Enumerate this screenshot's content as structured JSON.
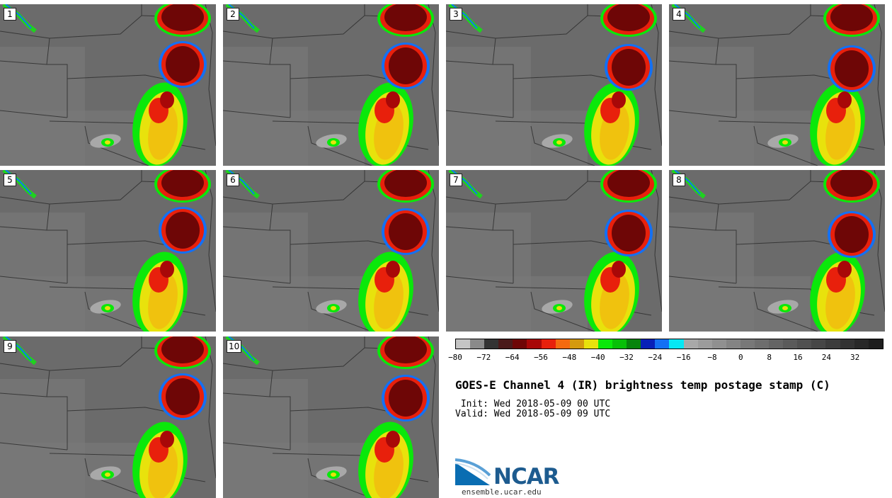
{
  "panels": [
    "1",
    "2",
    "3",
    "4",
    "5",
    "6",
    "7",
    "8",
    "9",
    "10"
  ],
  "colorbar": {
    "colors": [
      "#c4c4c4",
      "#8a8a8a",
      "#333333",
      "#4a1a1a",
      "#6e0606",
      "#a80808",
      "#e8200c",
      "#f46a10",
      "#d49a0e",
      "#e8e20c",
      "#0ae80a",
      "#08c008",
      "#08840c",
      "#0820b8",
      "#1470f4",
      "#06e8f4",
      "#a8a8a8",
      "#9c9c9c",
      "#909090",
      "#848484",
      "#787878",
      "#6e6e6e",
      "#646464",
      "#5a5a5a",
      "#505050",
      "#464646",
      "#3c3c3c",
      "#323232",
      "#282828",
      "#1e1e1e"
    ],
    "ticks": [
      "−80",
      "−72",
      "−64",
      "−56",
      "−48",
      "−40",
      "−32",
      "−24",
      "−16",
      "−8",
      "0",
      "8",
      "16",
      "24",
      "32"
    ]
  },
  "title": "GOES-E Channel 4 (IR) brightness temp postage stamp (C)",
  "init": " Init: Wed 2018-05-09 00 UTC",
  "valid": "Valid: Wed 2018-05-09 09 UTC",
  "logo": {
    "word": "NCAR",
    "site": "ensemble.ucar.edu"
  }
}
